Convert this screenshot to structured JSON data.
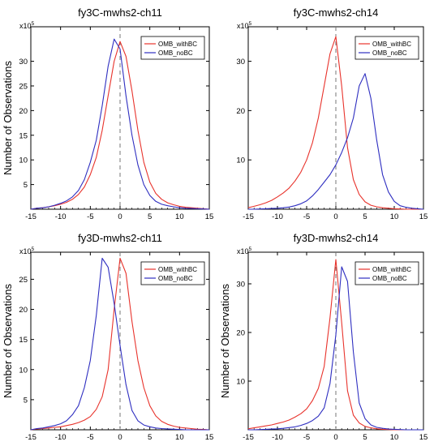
{
  "chart_data": [
    {
      "type": "line",
      "title": "fy3C-mwhs2-ch11",
      "xlabel": "",
      "ylabel": "Number of Observations",
      "y_multiplier_label": "x10",
      "y_multiplier_exp": "5",
      "xlim": [
        -15,
        15
      ],
      "ylim": [
        0,
        37
      ],
      "xticks": [
        -15,
        -10,
        -5,
        0,
        5,
        10,
        15
      ],
      "yticks": [
        5,
        10,
        15,
        20,
        25,
        30
      ],
      "legend_position": "top-right",
      "vline_x": 0,
      "series": [
        {
          "name": "OMB_withBC",
          "color": "#e8332c",
          "x": [
            -15,
            -14,
            -13,
            -12,
            -11,
            -10,
            -9,
            -8,
            -7,
            -6,
            -5,
            -4,
            -3,
            -2,
            -1,
            0,
            1,
            2,
            3,
            4,
            5,
            6,
            7,
            8,
            9,
            10,
            11,
            12,
            13,
            14,
            15
          ],
          "y": [
            0.0,
            0.2,
            0.3,
            0.5,
            0.7,
            1.0,
            1.4,
            2.0,
            3.0,
            4.5,
            7.0,
            10.5,
            16.0,
            23.0,
            30.0,
            34.0,
            31.0,
            24.0,
            16.0,
            9.5,
            5.5,
            3.2,
            2.0,
            1.3,
            0.9,
            0.6,
            0.4,
            0.3,
            0.2,
            0.1,
            0.0
          ]
        },
        {
          "name": "OMB_noBC",
          "color": "#2e2ec0",
          "x": [
            -15,
            -14,
            -13,
            -12,
            -11,
            -10,
            -9,
            -8,
            -7,
            -6,
            -5,
            -4,
            -3,
            -2,
            -1,
            0,
            1,
            2,
            3,
            4,
            5,
            6,
            7,
            8,
            9,
            10,
            11,
            12,
            13,
            14,
            15
          ],
          "y": [
            0.0,
            0.2,
            0.3,
            0.5,
            0.8,
            1.2,
            1.7,
            2.5,
            3.8,
            6.0,
            9.5,
            14.0,
            21.0,
            29.0,
            34.5,
            32.5,
            23.0,
            15.0,
            9.0,
            5.0,
            2.8,
            1.6,
            1.0,
            0.7,
            0.5,
            0.3,
            0.2,
            0.15,
            0.1,
            0.05,
            0.0
          ]
        }
      ]
    },
    {
      "type": "line",
      "title": "fy3C-mwhs2-ch14",
      "xlabel": "",
      "ylabel": "",
      "y_multiplier_label": "x10",
      "y_multiplier_exp": "5",
      "xlim": [
        -15,
        15
      ],
      "ylim": [
        0,
        37
      ],
      "xticks": [
        -15,
        -10,
        -5,
        0,
        5,
        10,
        15
      ],
      "yticks": [
        10,
        20,
        30
      ],
      "legend_position": "top-right",
      "vline_x": 0,
      "series": [
        {
          "name": "OMB_withBC",
          "color": "#e8332c",
          "x": [
            -15,
            -14,
            -13,
            -12,
            -11,
            -10,
            -9,
            -8,
            -7,
            -6,
            -5,
            -4,
            -3,
            -2,
            -1,
            0,
            1,
            2,
            3,
            4,
            5,
            6,
            7,
            8,
            9,
            10,
            11,
            12,
            13,
            14,
            15
          ],
          "y": [
            0.3,
            0.6,
            0.9,
            1.3,
            1.8,
            2.5,
            3.3,
            4.3,
            5.7,
            7.5,
            10.0,
            13.5,
            18.5,
            25.0,
            31.5,
            35.0,
            25.0,
            12.5,
            6.0,
            3.0,
            1.5,
            0.8,
            0.5,
            0.3,
            0.2,
            0.1,
            0.05,
            0.0,
            0.0,
            0.0,
            0.0
          ]
        },
        {
          "name": "OMB_noBC",
          "color": "#2e2ec0",
          "x": [
            -15,
            -14,
            -13,
            -12,
            -11,
            -10,
            -9,
            -8,
            -7,
            -6,
            -5,
            -4,
            -3,
            -2,
            -1,
            0,
            1,
            2,
            3,
            4,
            5,
            6,
            7,
            8,
            9,
            10,
            11,
            12,
            13,
            14,
            15
          ],
          "y": [
            0.0,
            0.0,
            0.05,
            0.1,
            0.15,
            0.2,
            0.3,
            0.45,
            0.7,
            1.1,
            1.7,
            2.7,
            4.0,
            5.5,
            7.0,
            9.0,
            11.5,
            14.5,
            18.5,
            25.0,
            27.5,
            22.5,
            14.0,
            7.0,
            3.5,
            1.6,
            0.7,
            0.4,
            0.2,
            0.1,
            0.0
          ]
        }
      ]
    },
    {
      "type": "line",
      "title": "fy3D-mwhs2-ch11",
      "xlabel": "",
      "ylabel": "Number of Observations",
      "y_multiplier_label": "x10",
      "y_multiplier_exp": "5",
      "xlim": [
        -15,
        15
      ],
      "ylim": [
        0,
        29.5
      ],
      "xticks": [
        -15,
        -10,
        -5,
        0,
        5,
        10,
        15
      ],
      "yticks": [
        5,
        10,
        15,
        20,
        25
      ],
      "legend_position": "top-right",
      "vline_x": 0,
      "series": [
        {
          "name": "OMB_withBC",
          "color": "#e8332c",
          "x": [
            -15,
            -14,
            -13,
            -12,
            -11,
            -10,
            -9,
            -8,
            -7,
            -6,
            -5,
            -4,
            -3,
            -2,
            -1,
            0,
            1,
            2,
            3,
            4,
            5,
            6,
            7,
            8,
            9,
            10,
            11,
            12,
            13,
            14,
            15
          ],
          "y": [
            0.0,
            0.15,
            0.2,
            0.3,
            0.4,
            0.5,
            0.7,
            0.9,
            1.2,
            1.6,
            2.2,
            3.4,
            5.5,
            10.0,
            20.0,
            28.5,
            26.0,
            18.0,
            11.5,
            7.0,
            4.0,
            2.3,
            1.4,
            0.9,
            0.6,
            0.4,
            0.3,
            0.2,
            0.1,
            0.05,
            0.0
          ]
        },
        {
          "name": "OMB_noBC",
          "color": "#2e2ec0",
          "x": [
            -15,
            -14,
            -13,
            -12,
            -11,
            -10,
            -9,
            -8,
            -7,
            -6,
            -5,
            -4,
            -3,
            -2,
            -1,
            0,
            1,
            2,
            3,
            4,
            5,
            6,
            7,
            8,
            9,
            10,
            11,
            12,
            13,
            14,
            15
          ],
          "y": [
            0.0,
            0.2,
            0.3,
            0.5,
            0.7,
            1.0,
            1.5,
            2.5,
            4.0,
            7.0,
            11.5,
            19.0,
            28.5,
            27.0,
            21.0,
            14.0,
            7.5,
            3.2,
            1.5,
            0.8,
            0.5,
            0.3,
            0.2,
            0.15,
            0.1,
            0.05,
            0.0,
            0.0,
            0.0,
            0.0,
            0.0
          ]
        }
      ]
    },
    {
      "type": "line",
      "title": "fy3D-mwhs2-ch14",
      "xlabel": "",
      "ylabel": "Number of Observations",
      "y_multiplier_label": "x10",
      "y_multiplier_exp": "5",
      "xlim": [
        -15,
        15
      ],
      "ylim": [
        0,
        36.5
      ],
      "xticks": [
        -15,
        -10,
        -5,
        0,
        5,
        10,
        15
      ],
      "yticks": [
        10,
        20,
        30
      ],
      "legend_position": "top-right",
      "vline_x": 0,
      "series": [
        {
          "name": "OMB_withBC",
          "color": "#e8332c",
          "x": [
            -15,
            -14,
            -13,
            -12,
            -11,
            -10,
            -9,
            -8,
            -7,
            -6,
            -5,
            -4,
            -3,
            -2,
            -1,
            0,
            1,
            2,
            3,
            4,
            5,
            6,
            7,
            8,
            9,
            10,
            11,
            12,
            13,
            14,
            15
          ],
          "y": [
            0.2,
            0.4,
            0.6,
            0.8,
            1.0,
            1.3,
            1.6,
            2.0,
            2.6,
            3.3,
            4.3,
            6.0,
            8.5,
            13.0,
            23.0,
            35.0,
            22.0,
            8.0,
            3.0,
            1.4,
            0.7,
            0.4,
            0.2,
            0.1,
            0.05,
            0.0,
            0.0,
            0.0,
            0.0,
            0.0,
            0.0
          ]
        },
        {
          "name": "OMB_noBC",
          "color": "#2e2ec0",
          "x": [
            -15,
            -14,
            -13,
            -12,
            -11,
            -10,
            -9,
            -8,
            -7,
            -6,
            -5,
            -4,
            -3,
            -2,
            -1,
            0,
            1,
            2,
            3,
            4,
            5,
            6,
            7,
            8,
            9,
            10,
            11,
            12,
            13,
            14,
            15
          ],
          "y": [
            0.0,
            0.0,
            0.05,
            0.1,
            0.15,
            0.2,
            0.3,
            0.45,
            0.6,
            0.9,
            1.3,
            1.9,
            2.8,
            4.5,
            9.5,
            19.5,
            33.5,
            30.5,
            16.0,
            5.5,
            2.3,
            1.0,
            0.5,
            0.3,
            0.15,
            0.1,
            0.05,
            0.0,
            0.0,
            0.0,
            0.0
          ]
        }
      ]
    }
  ]
}
